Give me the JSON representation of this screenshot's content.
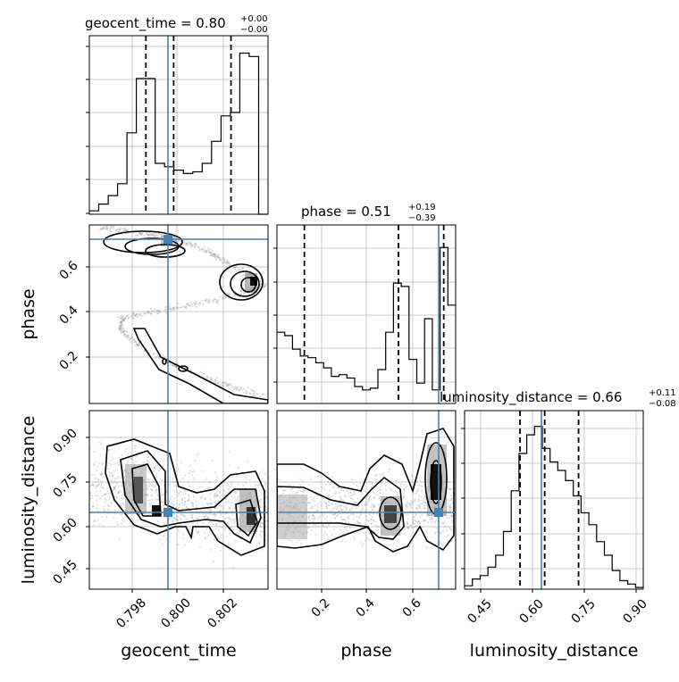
{
  "colors": {
    "truth": "#4682b4",
    "line": "#000000",
    "grid": "#c8c8c8",
    "scatter": "#9a9a9a"
  },
  "titles": {
    "geocent_time": {
      "name": "geocent_time",
      "value": "0.80",
      "plus": "+0.00",
      "minus": "−0.00"
    },
    "phase": {
      "name": "phase",
      "value": "0.51",
      "plus": "+0.19",
      "minus": "−0.39"
    },
    "luminosity_distance": {
      "name": "luminosity_distance",
      "value": "0.66",
      "plus": "+0.11",
      "minus": "−0.08"
    }
  },
  "chart_data": {
    "type": "corner",
    "parameters": [
      "geocent_time",
      "phase",
      "luminosity_distance"
    ],
    "axis_labels": {
      "x": [
        "geocent_time",
        "phase",
        "luminosity_distance"
      ],
      "y": [
        "phase",
        "luminosity_distance"
      ]
    },
    "ranges": {
      "geocent_time": [
        0.79675,
        0.8037
      ],
      "phase": [
        0.0,
        0.75
      ],
      "luminosity_distance": [
        0.4,
        0.98
      ]
    },
    "ticks": {
      "geocent_time": [
        "0.798",
        "0.800",
        "0.802"
      ],
      "phase": [
        "0.2",
        "0.4",
        "0.6"
      ],
      "luminosity_distance": [
        "0.45",
        "0.60",
        "0.75",
        "0.90"
      ]
    },
    "truths": {
      "geocent_time": 0.7996,
      "phase": 0.713,
      "luminosity_distance": 0.645
    },
    "quantiles": {
      "geocent_time": [
        0.79895,
        0.80003,
        0.80226
      ],
      "phase": [
        0.115,
        0.51,
        0.7
      ],
      "luminosity_distance": [
        0.58,
        0.66,
        0.77
      ]
    },
    "histograms": {
      "geocent_time": [
        0.02,
        0.06,
        0.11,
        0.18,
        0.48,
        0.8,
        0.8,
        0.3,
        0.28,
        0.26,
        0.24,
        0.25,
        0.3,
        0.43,
        0.58,
        0.6,
        0.95,
        0.93,
        0.0
      ],
      "phase": [
        0.42,
        0.4,
        0.32,
        0.28,
        0.27,
        0.24,
        0.21,
        0.16,
        0.17,
        0.15,
        0.1,
        0.08,
        0.09,
        0.2,
        0.42,
        0.71,
        0.69,
        0.26,
        0.12,
        0.5,
        0.08,
        0.92,
        0.58
      ],
      "luminosity_distance": [
        0.02,
        0.06,
        0.08,
        0.13,
        0.2,
        0.34,
        0.58,
        0.8,
        0.91,
        0.96,
        0.83,
        0.75,
        0.7,
        0.64,
        0.55,
        0.45,
        0.38,
        0.28,
        0.2,
        0.11,
        0.05,
        0.03,
        0.01
      ]
    }
  }
}
